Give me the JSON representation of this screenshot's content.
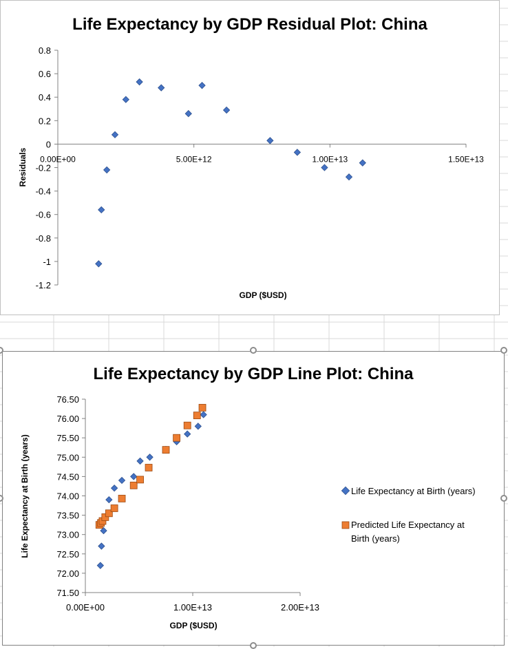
{
  "colors": {
    "actual_series": "#4472C4",
    "predicted_series": "#ED7D31",
    "axis": "#808080",
    "text": "#000000",
    "sheet_grid": "#d9d9d9"
  },
  "chart_data": [
    {
      "type": "scatter",
      "title": "Life Expectancy by GDP Residual Plot: China",
      "xlabel": "GDP ($USD)",
      "ylabel": "Residuals",
      "xlim": [
        0,
        15000000000000.0
      ],
      "ylim": [
        -1.2,
        0.8
      ],
      "x_ticks": [
        0,
        5000000000000.0,
        10000000000000.0,
        15000000000000.0
      ],
      "x_tick_labels": [
        "0.00E+00",
        "5.00E+12",
        "1.00E+13",
        "1.50E+13"
      ],
      "y_ticks": [
        0.8,
        0.6,
        0.4,
        0.2,
        0,
        -0.2,
        -0.4,
        -0.6,
        -0.8,
        -1,
        -1.2
      ],
      "y_tick_labels": [
        "0.8",
        "0.6",
        "0.4",
        "0.2",
        "0",
        "-0.2",
        "-0.4",
        "-0.6",
        "-0.8",
        "-1",
        "-1.2"
      ],
      "grid": false,
      "legend": "none",
      "series": [
        {
          "marker": "diamond",
          "color": "#4472C4",
          "points": [
            [
              1500000000000.0,
              -1.02
            ],
            [
              1600000000000.0,
              -0.56
            ],
            [
              1800000000000.0,
              -0.22
            ],
            [
              2100000000000.0,
              0.08
            ],
            [
              2500000000000.0,
              0.38
            ],
            [
              3000000000000.0,
              0.53
            ],
            [
              3800000000000.0,
              0.48
            ],
            [
              4800000000000.0,
              0.26
            ],
            [
              5300000000000.0,
              0.5
            ],
            [
              6200000000000.0,
              0.29
            ],
            [
              7800000000000.0,
              0.03
            ],
            [
              8800000000000.0,
              -0.07
            ],
            [
              9800000000000.0,
              -0.2
            ],
            [
              10700000000000.0,
              -0.28
            ],
            [
              11200000000000.0,
              -0.16
            ]
          ]
        }
      ]
    },
    {
      "type": "scatter",
      "title": "Life Expectancy by GDP Line Plot: China",
      "xlabel": "GDP ($USD)",
      "ylabel": "Life Expectancy at Birth (years)",
      "xlim": [
        0,
        20000000000000.0
      ],
      "ylim": [
        71.5,
        76.5
      ],
      "x_ticks": [
        0,
        10000000000000.0,
        20000000000000.0
      ],
      "x_tick_labels": [
        "0.00E+00",
        "1.00E+13",
        "2.00E+13"
      ],
      "y_ticks": [
        76.5,
        76.0,
        75.5,
        75.0,
        74.5,
        74.0,
        73.5,
        73.0,
        72.5,
        72.0,
        71.5
      ],
      "y_tick_labels": [
        "76.50",
        "76.00",
        "75.50",
        "75.00",
        "74.50",
        "74.00",
        "73.50",
        "73.00",
        "72.50",
        "72.00",
        "71.50"
      ],
      "grid": false,
      "legend": "right",
      "series": [
        {
          "name": "Life Expectancy at Birth (years)",
          "marker": "diamond",
          "color": "#4472C4",
          "points": [
            [
              1400000000000.0,
              72.2
            ],
            [
              1500000000000.0,
              72.7
            ],
            [
              1700000000000.0,
              73.1
            ],
            [
              2200000000000.0,
              73.9
            ],
            [
              2700000000000.0,
              74.2
            ],
            [
              3400000000000.0,
              74.4
            ],
            [
              4500000000000.0,
              74.5
            ],
            [
              5100000000000.0,
              74.9
            ],
            [
              6000000000000.0,
              75.0
            ],
            [
              7500000000000.0,
              75.2
            ],
            [
              8500000000000.0,
              75.4
            ],
            [
              9500000000000.0,
              75.6
            ],
            [
              10500000000000.0,
              75.8
            ],
            [
              11000000000000.0,
              76.1
            ]
          ]
        },
        {
          "name": "Predicted Life Expectancy at Birth (years)",
          "marker": "square",
          "color": "#ED7D31",
          "points": [
            [
              1300000000000.0,
              73.25
            ],
            [
              1450000000000.0,
              73.3
            ],
            [
              1600000000000.0,
              73.35
            ],
            [
              1850000000000.0,
              73.45
            ],
            [
              2200000000000.0,
              73.55
            ],
            [
              2700000000000.0,
              73.68
            ],
            [
              3400000000000.0,
              73.93
            ],
            [
              4500000000000.0,
              74.27
            ],
            [
              5100000000000.0,
              74.42
            ],
            [
              5900000000000.0,
              74.73
            ],
            [
              7500000000000.0,
              75.19
            ],
            [
              8500000000000.0,
              75.5
            ],
            [
              9500000000000.0,
              75.82
            ],
            [
              10400000000000.0,
              76.08
            ],
            [
              10900000000000.0,
              76.28
            ]
          ]
        }
      ]
    }
  ]
}
